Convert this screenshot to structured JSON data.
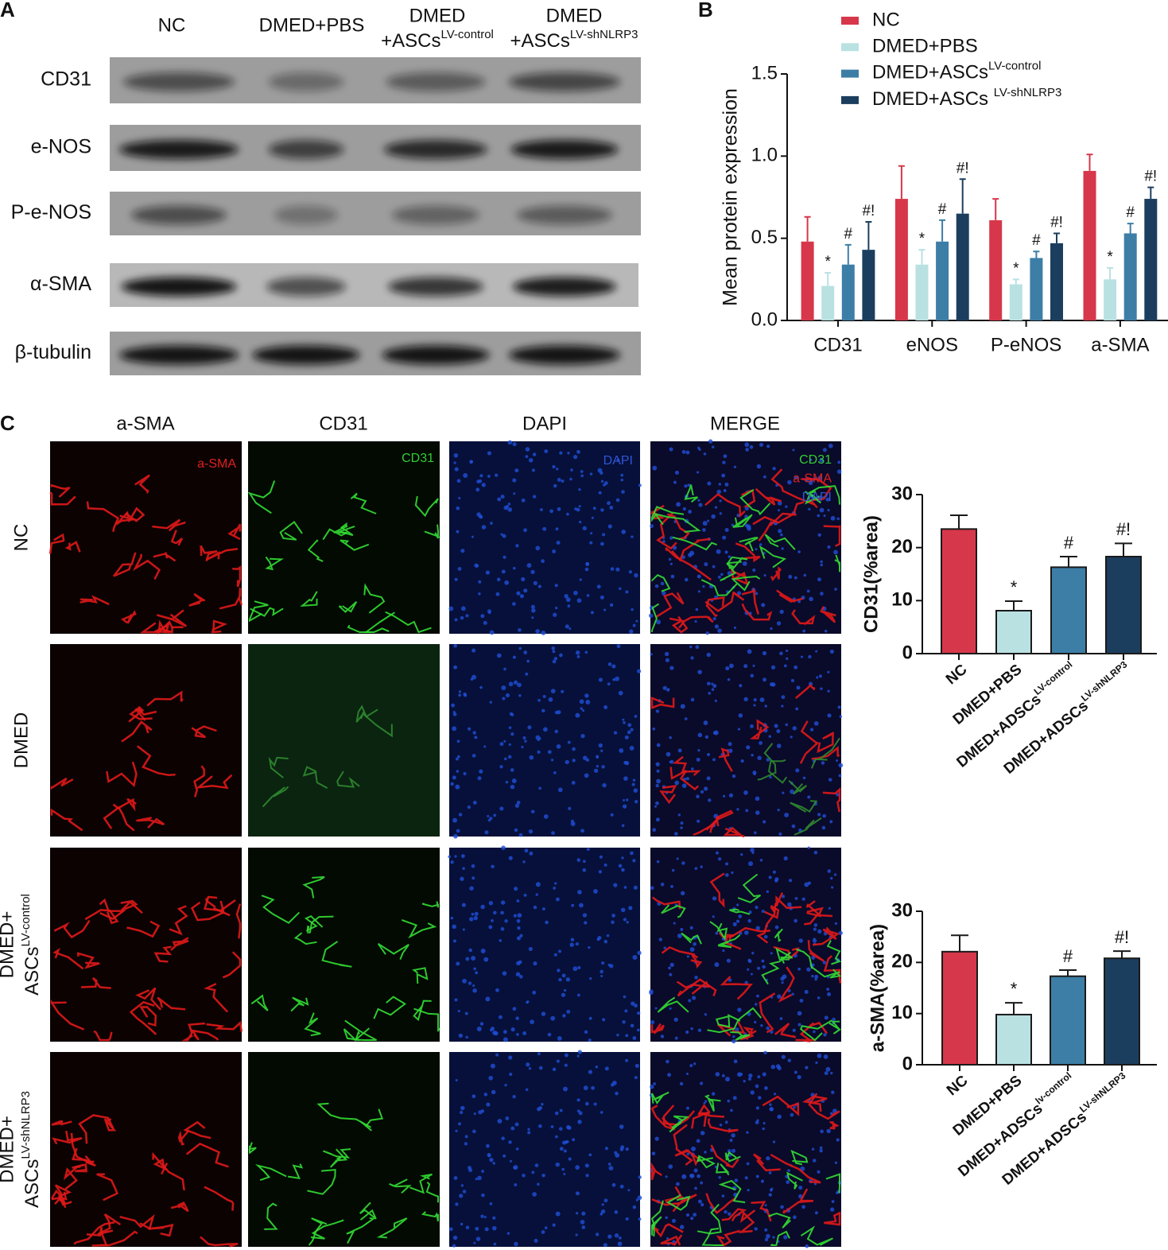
{
  "panel_labels": [
    "A",
    "B",
    "C"
  ],
  "blot": {
    "columns": [
      {
        "text": "NC"
      },
      {
        "text": "DMED+PBS"
      },
      {
        "text": "DMED",
        "text2": "+ASCs",
        "sup": "LV-control"
      },
      {
        "text": "DMED",
        "text2": "+ASCs",
        "sup": "LV-shNLRP3"
      }
    ],
    "rows": [
      "CD31",
      "e-NOS",
      "P-e-NOS",
      "α-SMA",
      "β-tubulin"
    ]
  },
  "microscopy": {
    "columns": [
      "a-SMA",
      "CD31",
      "DAPI",
      "MERGE"
    ],
    "rows": [
      {
        "text": "NC"
      },
      {
        "text": "DMED"
      },
      {
        "text": "DMED+",
        "text2": "ASCs",
        "sup": "LV-control"
      },
      {
        "text": "DMED+",
        "text2": "ASCs",
        "sup": "LV-shNLRP3"
      }
    ],
    "overlay_labels": {
      "a_sma": "a-SMA",
      "cd31": "CD31",
      "dapi": "DAPI",
      "merge": [
        "CD31",
        "a-SMA",
        "DAPI"
      ]
    }
  },
  "chart_data": [
    {
      "type": "bar",
      "ylabel": "Mean protein expression",
      "categories": [
        "CD31",
        "eNOS",
        "P-eNOS",
        "a-SMA"
      ],
      "series": [
        {
          "name": "NC",
          "color": "#d7374a",
          "values": [
            0.48,
            0.74,
            0.61,
            0.91
          ],
          "errors": [
            0.15,
            0.2,
            0.13,
            0.1
          ]
        },
        {
          "name": "DMED+PBS",
          "color": "#b9e1e2",
          "values": [
            0.21,
            0.34,
            0.22,
            0.25
          ],
          "errors": [
            0.08,
            0.09,
            0.03,
            0.07
          ],
          "annotations": [
            "*",
            "*",
            "*",
            "*"
          ]
        },
        {
          "name": "DMED+ASCs",
          "name_sup": "LV-control",
          "color": "#3d7ea6",
          "values": [
            0.34,
            0.48,
            0.38,
            0.53
          ],
          "errors": [
            0.12,
            0.13,
            0.04,
            0.06
          ],
          "annotations": [
            "#",
            "#",
            "#",
            "#"
          ]
        },
        {
          "name": "DMED+ASCs ",
          "name_sup": "LV-shNLRP3",
          "color": "#1c3e5e",
          "values": [
            0.43,
            0.65,
            0.47,
            0.74
          ],
          "errors": [
            0.17,
            0.21,
            0.06,
            0.07
          ],
          "annotations": [
            "#!",
            "#!",
            "#!",
            "#!"
          ]
        }
      ],
      "ylim": [
        0,
        1.5
      ],
      "yticks": [
        {
          "value": 0,
          "label": "0.0"
        },
        0.5,
        {
          "value": 1,
          "label": "1.0"
        },
        1.5
      ],
      "legend": "top"
    },
    {
      "type": "bar",
      "ylabel": "CD31(%area)",
      "categories": [
        "NC",
        "DMED+PBS",
        "DMED+ADSCs",
        "DMED+ADSCs"
      ],
      "category_sups": [
        null,
        null,
        "LV-control",
        "LV-shNLRP3"
      ],
      "values": [
        23.5,
        8.1,
        16.3,
        18.3
      ],
      "errors": [
        2.6,
        1.8,
        2.0,
        2.5
      ],
      "annotations": [
        null,
        "*",
        "#",
        "#!"
      ],
      "colors": [
        "#d7374a",
        "#b9e1e2",
        "#3d7ea6",
        "#1c3e5e"
      ],
      "ylim": [
        0,
        30
      ],
      "yticks": [
        0,
        10,
        20,
        30
      ]
    },
    {
      "type": "bar",
      "ylabel": "a-SMA(%area)",
      "categories": [
        "NC",
        "DMED+PBS",
        "DMED+ADSCs",
        "DMED+ADSCs"
      ],
      "category_sups": [
        null,
        null,
        "lv-control",
        "LV-shNLRP3"
      ],
      "values": [
        22.1,
        9.8,
        17.3,
        20.8
      ],
      "errors": [
        3.2,
        2.3,
        1.2,
        1.4
      ],
      "annotations": [
        null,
        "*",
        "#",
        "#!"
      ],
      "colors": [
        "#d7374a",
        "#b9e1e2",
        "#3d7ea6",
        "#1c3e5e"
      ],
      "ylim": [
        0,
        30
      ],
      "yticks": [
        0,
        10,
        20,
        30
      ]
    }
  ]
}
